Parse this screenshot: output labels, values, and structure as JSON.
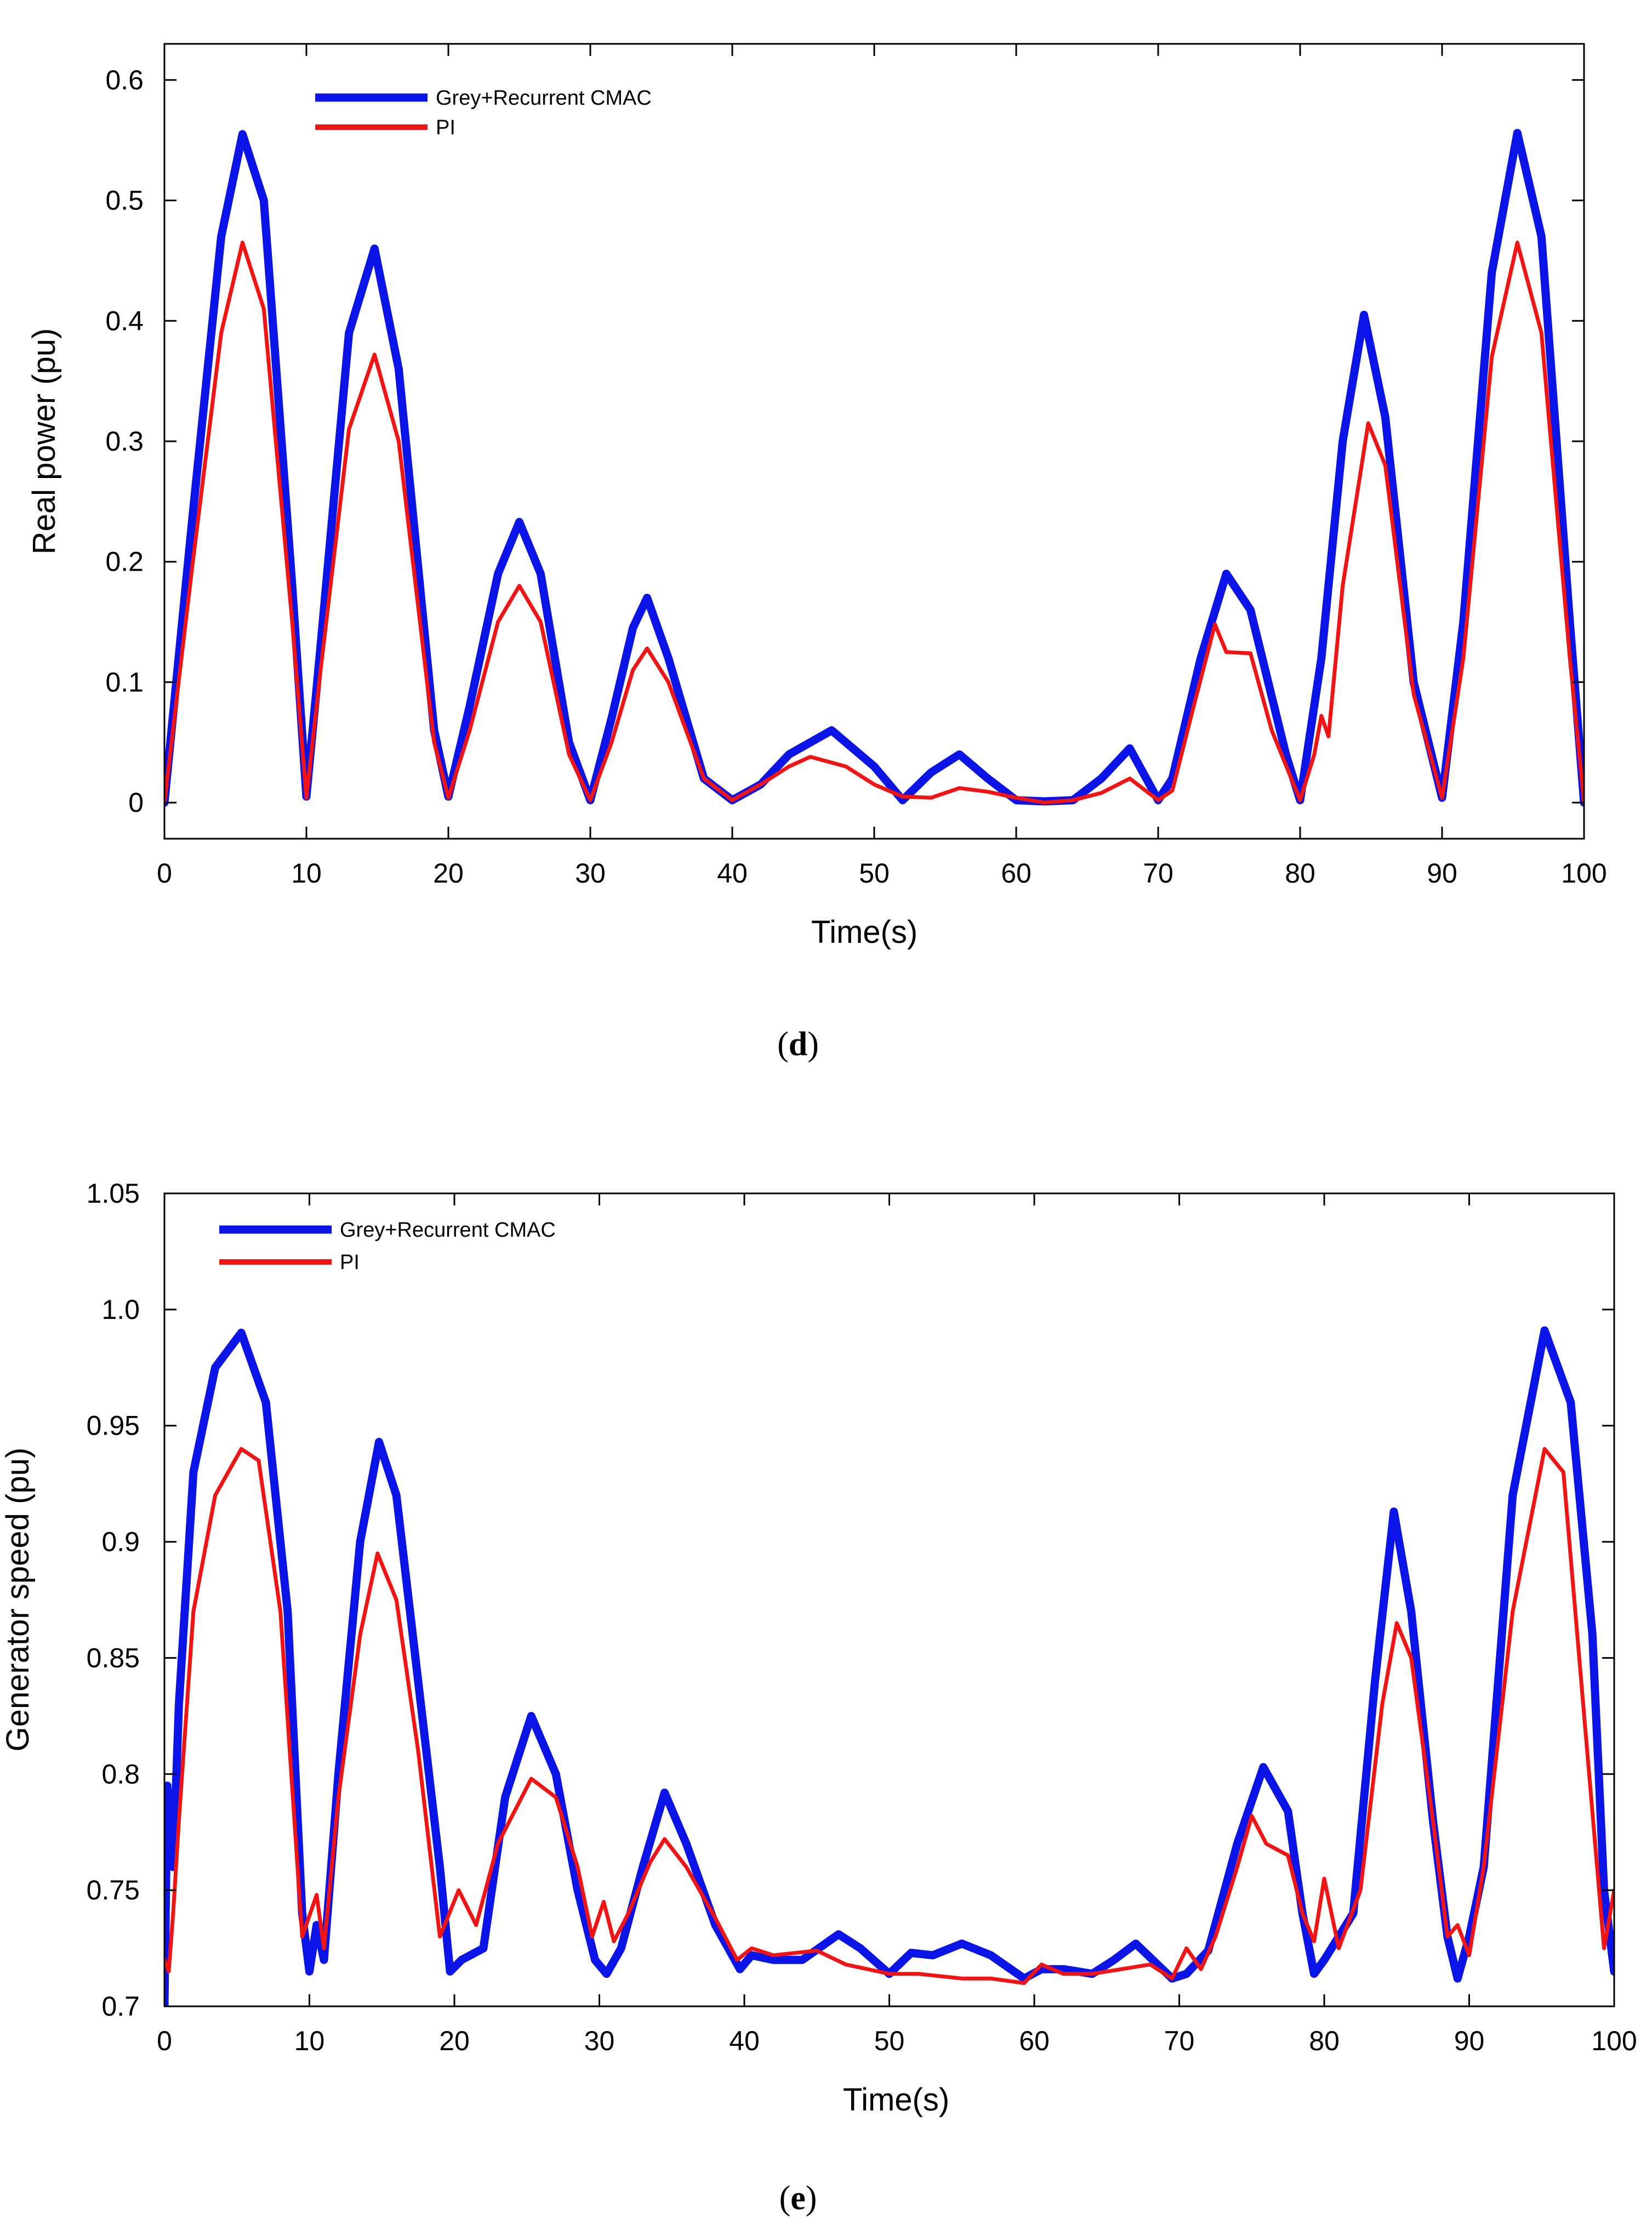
{
  "colors": {
    "grey_cmac": "#0a14e6",
    "pi": "#f01414",
    "axis": "#000000"
  },
  "chart_data": [
    {
      "type": "line",
      "panel": "d",
      "caption_letter": "d",
      "title": "",
      "xlabel": "Time(s)",
      "ylabel": "Real power (pu)",
      "xlim": [
        0,
        100
      ],
      "ylim": [
        -0.03,
        0.63
      ],
      "xticks": [
        0,
        10,
        20,
        30,
        40,
        50,
        60,
        70,
        80,
        90,
        100
      ],
      "xtick_labels": [
        "0",
        "10",
        "20",
        "30",
        "40",
        "50",
        "60",
        "70",
        "80",
        "90",
        "100"
      ],
      "yticks": [
        0,
        0.1,
        0.2,
        0.3,
        0.4,
        0.5,
        0.6
      ],
      "ytick_labels": [
        "0",
        "0.1",
        "0.2",
        "0.3",
        "0.4",
        "0.5",
        "0.6"
      ],
      "legend_position": "top-left",
      "series": [
        {
          "name": "Grey+Recurrent CMAC",
          "color_key": "grey_cmac",
          "x": [
            0,
            2,
            4,
            5.5,
            7,
            9,
            10,
            11,
            13,
            14.8,
            16.5,
            19,
            20,
            21.5,
            23.5,
            25,
            26.5,
            28.5,
            30,
            31.5,
            33,
            34,
            35.5,
            38,
            40,
            42,
            44,
            47,
            50,
            52,
            54,
            56,
            58,
            60,
            62,
            64,
            66,
            68,
            70,
            71,
            73,
            74.8,
            76.5,
            79,
            80,
            81.5,
            83,
            84.5,
            86,
            88,
            90,
            91.5,
            93.5,
            95.3,
            97,
            99,
            100
          ],
          "y": [
            0,
            0.24,
            0.47,
            0.555,
            0.5,
            0.18,
            0.005,
            0.13,
            0.39,
            0.46,
            0.36,
            0.06,
            0.005,
            0.08,
            0.19,
            0.233,
            0.19,
            0.05,
            0.002,
            0.07,
            0.145,
            0.17,
            0.12,
            0.02,
            0.002,
            0.015,
            0.04,
            0.06,
            0.03,
            0.002,
            0.025,
            0.04,
            0.02,
            0.002,
            0.001,
            0.002,
            0.02,
            0.045,
            0.002,
            0.02,
            0.12,
            0.19,
            0.16,
            0.04,
            0.002,
            0.12,
            0.3,
            0.405,
            0.32,
            0.1,
            0.004,
            0.15,
            0.44,
            0.556,
            0.47,
            0.15,
            0
          ]
        },
        {
          "name": "PI",
          "color_key": "pi",
          "x": [
            0,
            2,
            4,
            5.5,
            7,
            9,
            10,
            11,
            13,
            14.8,
            16.5,
            19,
            20,
            21.5,
            23.5,
            25,
            26.5,
            28.5,
            30,
            31.5,
            33,
            34,
            35.5,
            38,
            40,
            42,
            44,
            45.5,
            48,
            50,
            52,
            54,
            56,
            58,
            60,
            62,
            64,
            66,
            68,
            70,
            71,
            72.5,
            74,
            74.8,
            76.5,
            78,
            80,
            81,
            81.5,
            82,
            83,
            84.8,
            86,
            88,
            90,
            91.5,
            93.5,
            95.3,
            97,
            99,
            100
          ],
          "y": [
            0,
            0.2,
            0.39,
            0.465,
            0.41,
            0.15,
            0.004,
            0.11,
            0.31,
            0.372,
            0.3,
            0.05,
            0.004,
            0.06,
            0.15,
            0.18,
            0.15,
            0.04,
            0.002,
            0.05,
            0.11,
            0.128,
            0.1,
            0.02,
            0.002,
            0.015,
            0.03,
            0.038,
            0.03,
            0.015,
            0.005,
            0.004,
            0.012,
            0.009,
            0.004,
            0.0,
            0.002,
            0.008,
            0.02,
            0.002,
            0.01,
            0.08,
            0.148,
            0.125,
            0.124,
            0.06,
            0.002,
            0.04,
            0.072,
            0.055,
            0.18,
            0.315,
            0.28,
            0.09,
            0.004,
            0.12,
            0.37,
            0.465,
            0.39,
            0.12,
            0
          ]
        }
      ]
    },
    {
      "type": "line",
      "panel": "e",
      "caption_letter": "e",
      "title": "",
      "xlabel": "Time(s)",
      "ylabel": "Generator speed (pu)",
      "xlim": [
        0,
        100
      ],
      "ylim": [
        0.7,
        1.05
      ],
      "xticks": [
        0,
        10,
        20,
        30,
        40,
        50,
        60,
        70,
        80,
        90,
        100
      ],
      "xtick_labels": [
        "0",
        "10",
        "20",
        "30",
        "40",
        "50",
        "60",
        "70",
        "80",
        "90",
        "100"
      ],
      "yticks": [
        0.7,
        0.75,
        0.8,
        0.85,
        0.9,
        0.95,
        1.0,
        1.05
      ],
      "ytick_labels": [
        "0.7",
        "0.75",
        "0.8",
        "0.85",
        "0.9",
        "0.95",
        "1.0",
        "1.05"
      ],
      "legend_position": "top-left",
      "series": [
        {
          "name": "Grey+Recurrent CMAC",
          "color_key": "grey_cmac",
          "x": [
            0,
            0.2,
            0.4,
            0.6,
            1,
            2,
            3.5,
            5.3,
            7,
            8.5,
            9.5,
            10,
            10.5,
            11,
            12,
            13.5,
            14.8,
            16,
            17.5,
            19,
            19.7,
            20.5,
            22,
            23.5,
            25.3,
            27,
            28.5,
            29.7,
            30.5,
            31.5,
            33,
            34.5,
            36,
            38,
            39.7,
            40.5,
            42,
            44,
            46.5,
            48,
            50,
            51.5,
            53,
            55,
            57,
            59.3,
            60.5,
            62,
            64,
            65.5,
            67,
            68.5,
            69.5,
            70.5,
            72,
            74,
            75.8,
            77.5,
            78.5,
            79.3,
            80,
            81,
            82,
            83.5,
            84.8,
            86,
            87.5,
            88.5,
            89.2,
            90,
            91,
            93,
            95.2,
            97,
            98.5,
            99.3,
            100
          ],
          "y": [
            0.7,
            0.795,
            0.77,
            0.76,
            0.83,
            0.93,
            0.975,
            0.99,
            0.96,
            0.87,
            0.74,
            0.715,
            0.735,
            0.72,
            0.8,
            0.9,
            0.943,
            0.92,
            0.84,
            0.76,
            0.715,
            0.72,
            0.725,
            0.79,
            0.825,
            0.8,
            0.75,
            0.72,
            0.714,
            0.725,
            0.76,
            0.792,
            0.77,
            0.735,
            0.716,
            0.722,
            0.72,
            0.72,
            0.731,
            0.725,
            0.714,
            0.723,
            0.722,
            0.727,
            0.722,
            0.712,
            0.716,
            0.716,
            0.714,
            0.72,
            0.727,
            0.718,
            0.712,
            0.714,
            0.724,
            0.77,
            0.803,
            0.784,
            0.74,
            0.714,
            0.72,
            0.73,
            0.74,
            0.84,
            0.913,
            0.87,
            0.78,
            0.73,
            0.712,
            0.73,
            0.76,
            0.92,
            0.991,
            0.96,
            0.86,
            0.75,
            0.715
          ]
        },
        {
          "name": "PI",
          "color_key": "pi",
          "x": [
            0,
            0.3,
            0.6,
            1,
            2,
            3.5,
            5.3,
            6.5,
            8,
            9.5,
            10.5,
            11,
            12,
            13.5,
            14.7,
            16,
            17.5,
            19,
            20.3,
            21.5,
            23,
            25.3,
            27,
            28.5,
            29.5,
            30.3,
            31,
            32,
            33.5,
            34.5,
            36,
            38,
            39.5,
            40.5,
            42,
            45,
            47,
            50,
            52,
            55,
            57,
            59.3,
            60.5,
            62,
            64,
            66,
            68,
            69.5,
            70.5,
            71.5,
            72.5,
            74,
            75,
            76,
            77.5,
            78.5,
            79.3,
            80,
            81,
            82.5,
            84,
            85,
            86,
            87.5,
            88.5,
            89.2,
            90,
            91,
            93,
            95.2,
            96.5,
            98,
            99.3,
            100
          ],
          "y": [
            0.72,
            0.715,
            0.74,
            0.78,
            0.87,
            0.92,
            0.94,
            0.935,
            0.87,
            0.73,
            0.748,
            0.725,
            0.79,
            0.86,
            0.895,
            0.875,
            0.81,
            0.73,
            0.75,
            0.735,
            0.77,
            0.798,
            0.79,
            0.76,
            0.73,
            0.745,
            0.728,
            0.74,
            0.762,
            0.772,
            0.76,
            0.738,
            0.72,
            0.725,
            0.722,
            0.724,
            0.718,
            0.714,
            0.714,
            0.712,
            0.712,
            0.71,
            0.718,
            0.714,
            0.714,
            0.716,
            0.718,
            0.712,
            0.725,
            0.716,
            0.73,
            0.76,
            0.782,
            0.77,
            0.765,
            0.74,
            0.728,
            0.755,
            0.725,
            0.75,
            0.83,
            0.865,
            0.85,
            0.78,
            0.73,
            0.735,
            0.722,
            0.76,
            0.87,
            0.94,
            0.93,
            0.82,
            0.725,
            0.75
          ]
        }
      ]
    }
  ]
}
